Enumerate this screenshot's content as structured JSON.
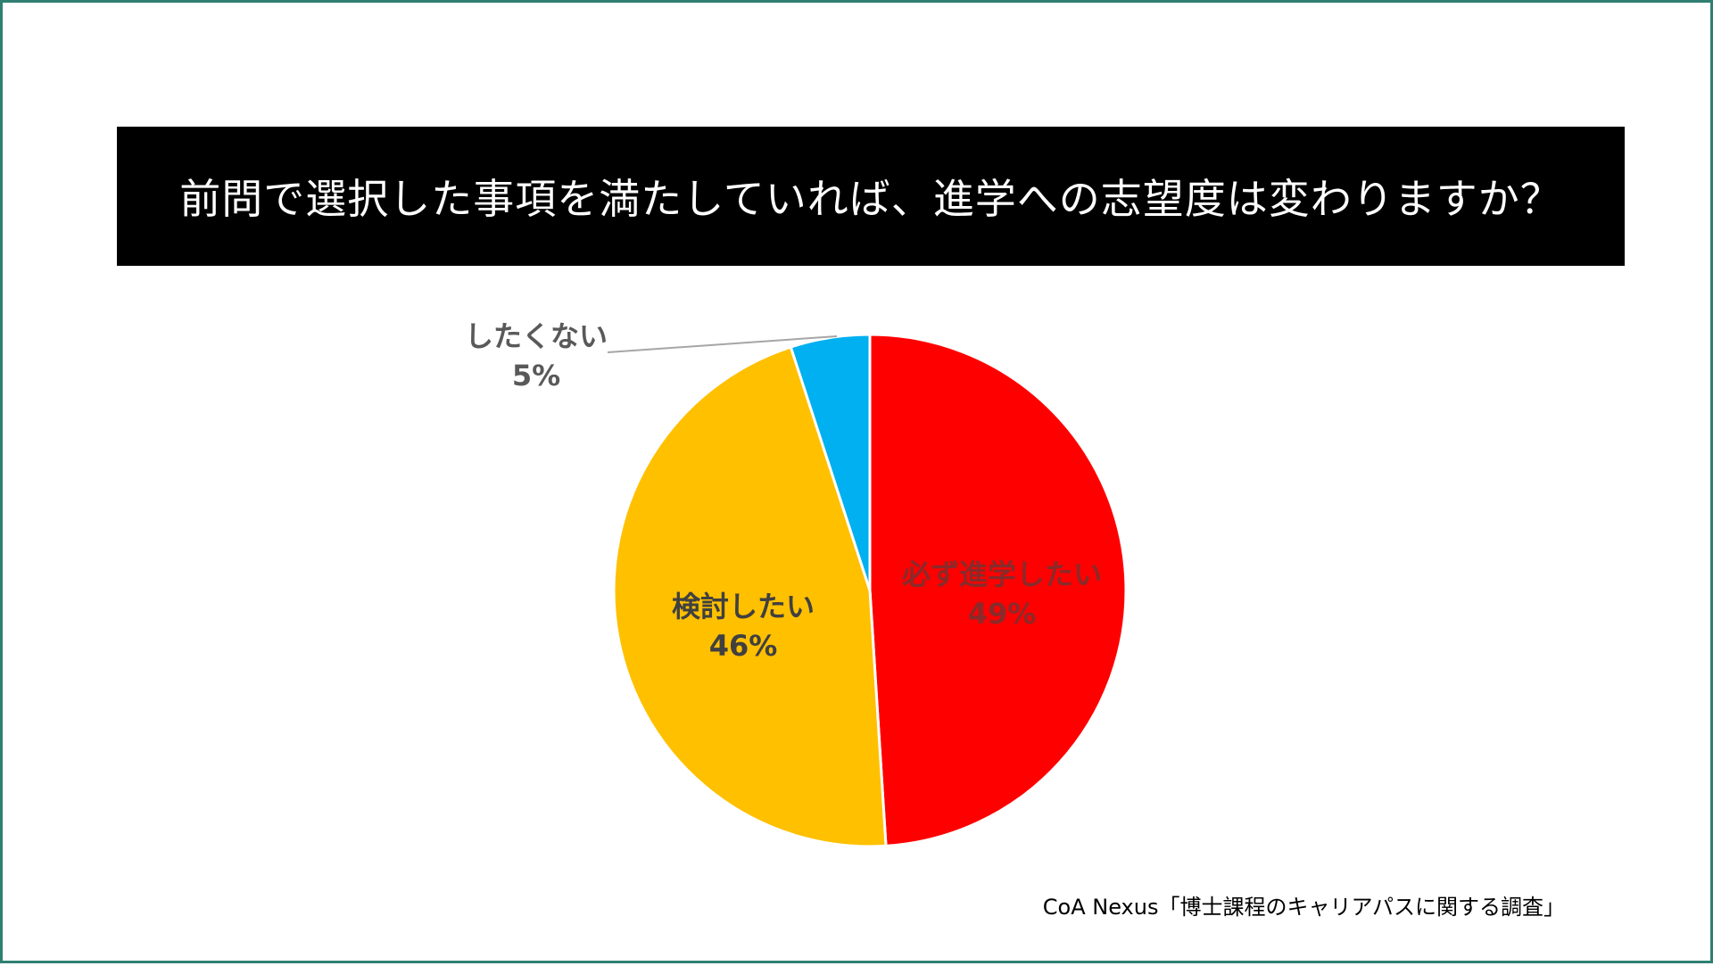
{
  "title": "前問で選択した事項を満たしていれば、進学への志望度は変わりますか？",
  "source": "CoA Nexus「博士課程のキャリアパスに関する調査」",
  "chart_data": {
    "type": "pie",
    "slices": [
      {
        "label": "必ず進学したい",
        "value": 49,
        "value_label": "49%",
        "color": "#ff0000",
        "label_color": "#8a2a2a"
      },
      {
        "label": "検討したい",
        "value": 46,
        "value_label": "46%",
        "color": "#ffc000",
        "label_color": "#404040"
      },
      {
        "label": "したくない",
        "value": 5,
        "value_label": "5%",
        "color": "#00b0f0",
        "label_color": "#595959"
      }
    ],
    "start_angle": "12 o'clock",
    "direction": "clockwise",
    "legend": "none"
  }
}
